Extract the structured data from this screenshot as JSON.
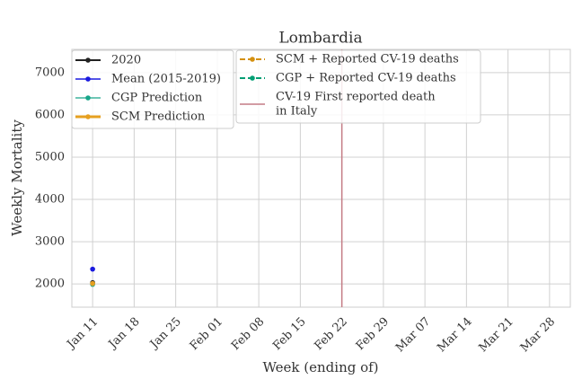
{
  "chart_data": {
    "type": "line",
    "title": "Lombardia",
    "xlabel": "Week (ending of)",
    "ylabel": "Weekly Mortality",
    "categories": [
      "Jan 11",
      "Jan 18",
      "Jan 25",
      "Feb 01",
      "Feb 08",
      "Feb 15",
      "Feb 22",
      "Feb 29",
      "Mar 07",
      "Mar 14",
      "Mar 21",
      "Mar 28"
    ],
    "ylim": [
      1450,
      7550
    ],
    "yticks": [
      2000,
      3000,
      4000,
      5000,
      6000,
      7000
    ],
    "grid": true,
    "series": [
      {
        "name": "2020",
        "color": "#222222",
        "width": 2,
        "dash": false,
        "values": [
          2030,
          null,
          null,
          null,
          null,
          null,
          null,
          null,
          null,
          null,
          null,
          null
        ]
      },
      {
        "name": "Mean (2015-2019)",
        "color": "#1a1adf",
        "width": 1.5,
        "dash": false,
        "values": [
          2350,
          null,
          null,
          null,
          null,
          null,
          null,
          null,
          null,
          null,
          null,
          null
        ]
      },
      {
        "name": "CGP Prediction",
        "color": "#17a589",
        "width": 1.2,
        "dash": false,
        "values": [
          1990,
          null,
          null,
          null,
          null,
          null,
          null,
          null,
          null,
          null,
          null,
          null
        ]
      },
      {
        "name": "SCM Prediction",
        "color": "#e6a020",
        "width": 3,
        "dash": false,
        "values": [
          2010,
          null,
          null,
          null,
          null,
          null,
          null,
          null,
          null,
          null,
          null,
          null
        ]
      },
      {
        "name": "SCM + Reported CV-19 deaths",
        "color": "#d4900f",
        "width": 2,
        "dash": true,
        "values": [
          null,
          null,
          null,
          null,
          null,
          null,
          null,
          null,
          null,
          null,
          null,
          null
        ]
      },
      {
        "name": "CGP + Reported CV-19 deaths",
        "color": "#009e73",
        "width": 2,
        "dash": true,
        "values": [
          null,
          null,
          null,
          null,
          null,
          null,
          null,
          null,
          null,
          null,
          null,
          null
        ]
      }
    ],
    "event_line": {
      "name": [
        "CV-19 First reported death",
        "in Italy"
      ],
      "x": "Feb 22",
      "color": "#c47c85"
    }
  }
}
